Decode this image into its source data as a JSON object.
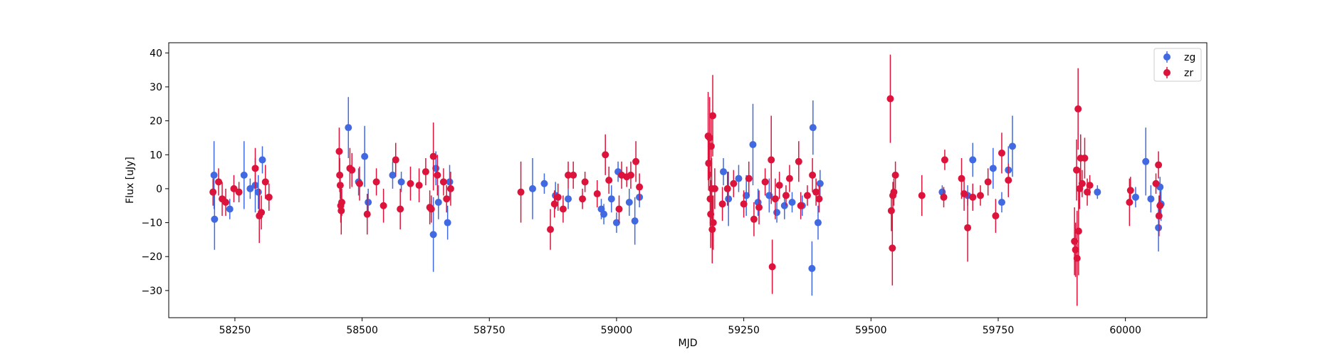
{
  "colors": {
    "zg": "#4169e1",
    "zr": "#dc143c",
    "axes": "#000000",
    "background": "#ffffff"
  },
  "chart_data": {
    "type": "scatter",
    "title": "",
    "xlabel": "MJD",
    "ylabel": "Flux [uJy]",
    "xlim": [
      58120,
      60160
    ],
    "ylim": [
      -38,
      43
    ],
    "x_ticks": [
      58250,
      58500,
      58750,
      59000,
      59250,
      59500,
      59750,
      60000
    ],
    "y_ticks": [
      -30,
      -20,
      -10,
      0,
      10,
      20,
      30,
      40
    ],
    "grid": false,
    "legend": {
      "placement": "top-right"
    },
    "error_bars": true,
    "series": [
      {
        "name": "zg",
        "color": "#4169e1",
        "points": [
          [
            58209,
            4,
            10
          ],
          [
            58210,
            -9,
            9
          ],
          [
            58240,
            -6,
            3
          ],
          [
            58268,
            4,
            10
          ],
          [
            58280,
            0,
            3
          ],
          [
            58290,
            1,
            8
          ],
          [
            58296,
            -1,
            5
          ],
          [
            58304,
            8.5,
            4
          ],
          [
            58473,
            18,
            9
          ],
          [
            58493,
            2,
            4
          ],
          [
            58505,
            9.5,
            9
          ],
          [
            58512,
            -4,
            4
          ],
          [
            58560,
            4,
            4
          ],
          [
            58577,
            2,
            3
          ],
          [
            58640,
            -13.5,
            11
          ],
          [
            58645,
            6,
            5
          ],
          [
            58650,
            -4,
            5
          ],
          [
            58668,
            -10,
            5
          ],
          [
            58672,
            2,
            5
          ],
          [
            58835,
            0,
            9
          ],
          [
            58858,
            1.5,
            3
          ],
          [
            58880,
            -2,
            4
          ],
          [
            58905,
            -3,
            3
          ],
          [
            58970,
            -6,
            3
          ],
          [
            58975,
            -7.5,
            3
          ],
          [
            58990,
            -3,
            4
          ],
          [
            59000,
            -10,
            3
          ],
          [
            59003,
            5,
            3
          ],
          [
            59025,
            -4,
            4
          ],
          [
            59036,
            -9.5,
            7
          ],
          [
            59045,
            -2.5,
            3
          ],
          [
            59210,
            5,
            4
          ],
          [
            59220,
            -3,
            8
          ],
          [
            59240,
            3,
            4
          ],
          [
            59268,
            13,
            12
          ],
          [
            59255,
            -2,
            6
          ],
          [
            59278,
            -4,
            4
          ],
          [
            59300,
            -2,
            5
          ],
          [
            59315,
            -7,
            3
          ],
          [
            59330,
            -5,
            4
          ],
          [
            59345,
            -4,
            3
          ],
          [
            59365,
            -5,
            3
          ],
          [
            59384,
            -23.5,
            8
          ],
          [
            59386,
            18,
            8
          ],
          [
            59396,
            -10,
            5
          ],
          [
            59400,
            1.5,
            4
          ],
          [
            59640,
            -1,
            2
          ],
          [
            59690,
            -2,
            3
          ],
          [
            59700,
            8.5,
            5
          ],
          [
            59740,
            6,
            6
          ],
          [
            59757,
            -4,
            3
          ],
          [
            59770,
            5.5,
            7
          ],
          [
            59778,
            12.5,
            9
          ],
          [
            59945,
            -1,
            2
          ],
          [
            60020,
            -2.5,
            3
          ],
          [
            60040,
            8,
            10
          ],
          [
            60050,
            -3,
            4
          ],
          [
            60065,
            -11.5,
            7
          ],
          [
            60068,
            0.5,
            3
          ],
          [
            60070,
            -4.5,
            5
          ]
        ]
      },
      {
        "name": "zr",
        "color": "#dc143c",
        "points": [
          [
            58207,
            -1,
            4
          ],
          [
            58218,
            2,
            4
          ],
          [
            58225,
            -3,
            5
          ],
          [
            58232,
            -4,
            4
          ],
          [
            58248,
            0,
            4
          ],
          [
            58258,
            -1,
            3
          ],
          [
            58290,
            6,
            6
          ],
          [
            58298,
            -8,
            8
          ],
          [
            58302,
            -7,
            5
          ],
          [
            58310,
            2,
            5
          ],
          [
            58317,
            -2.5,
            4
          ],
          [
            58455,
            11,
            7
          ],
          [
            58456,
            4,
            5
          ],
          [
            58457,
            1,
            4
          ],
          [
            58458,
            -5,
            5
          ],
          [
            58459,
            -6.5,
            7
          ],
          [
            58460,
            -4,
            4
          ],
          [
            58476,
            6,
            6
          ],
          [
            58480,
            5.5,
            5
          ],
          [
            58495,
            1.5,
            5
          ],
          [
            58510,
            -7.5,
            6
          ],
          [
            58528,
            2,
            4
          ],
          [
            58542,
            -5,
            5
          ],
          [
            58566,
            8.5,
            5
          ],
          [
            58575,
            -6,
            6
          ],
          [
            58595,
            1.5,
            5
          ],
          [
            58612,
            1,
            5
          ],
          [
            58625,
            5,
            4
          ],
          [
            58633,
            -5.5,
            5
          ],
          [
            58636,
            -6,
            4
          ],
          [
            58640,
            9.5,
            10
          ],
          [
            58648,
            4,
            6
          ],
          [
            58660,
            2,
            4
          ],
          [
            58666,
            -3,
            4
          ],
          [
            58674,
            0,
            5
          ],
          [
            58812,
            -1,
            9
          ],
          [
            58870,
            -12,
            6
          ],
          [
            58878,
            -4.5,
            4
          ],
          [
            58885,
            -2.5,
            4
          ],
          [
            58895,
            -6,
            4
          ],
          [
            58905,
            4,
            4
          ],
          [
            58915,
            4,
            4
          ],
          [
            58933,
            -3,
            3
          ],
          [
            58938,
            2,
            3
          ],
          [
            58962,
            -1.5,
            4
          ],
          [
            58978,
            10,
            6
          ],
          [
            58985,
            2.5,
            4
          ],
          [
            59005,
            -6,
            4
          ],
          [
            59010,
            4,
            4
          ],
          [
            59020,
            3.5,
            3
          ],
          [
            59028,
            4,
            4
          ],
          [
            59038,
            8,
            6
          ],
          [
            59045,
            0.5,
            4
          ],
          [
            59180,
            15.5,
            13
          ],
          [
            59181,
            7.5,
            8
          ],
          [
            59183,
            15,
            12
          ],
          [
            59184,
            -3,
            8
          ],
          [
            59185,
            -7.5,
            10
          ],
          [
            59186,
            12.5,
            9
          ],
          [
            59187,
            0,
            9
          ],
          [
            59188,
            -12,
            10
          ],
          [
            59189,
            21.5,
            12
          ],
          [
            59190,
            -10,
            8
          ],
          [
            59193,
            0,
            6
          ],
          [
            59208,
            -4.5,
            5
          ],
          [
            59218,
            0,
            5
          ],
          [
            59230,
            1.5,
            4
          ],
          [
            59250,
            -4.5,
            4
          ],
          [
            59260,
            3,
            5
          ],
          [
            59270,
            -9,
            5
          ],
          [
            59280,
            -5.5,
            5
          ],
          [
            59292,
            2,
            4
          ],
          [
            59304,
            8.5,
            13
          ],
          [
            59306,
            -23,
            8
          ],
          [
            59312,
            -3,
            6
          ],
          [
            59320,
            1,
            4
          ],
          [
            59333,
            -2,
            3
          ],
          [
            59340,
            3,
            4
          ],
          [
            59358,
            8,
            6
          ],
          [
            59362,
            -5,
            4
          ],
          [
            59375,
            -2,
            3
          ],
          [
            59385,
            4,
            5
          ],
          [
            59392,
            -1,
            4
          ],
          [
            59398,
            -3,
            4
          ],
          [
            59538,
            26.5,
            13
          ],
          [
            59540,
            -6.5,
            6
          ],
          [
            59542,
            -17.5,
            11
          ],
          [
            59543,
            -2,
            4
          ],
          [
            59545,
            -1,
            4
          ],
          [
            59548,
            4,
            4
          ],
          [
            59600,
            -2,
            6
          ],
          [
            59643,
            -2.5,
            3
          ],
          [
            59645,
            8.5,
            3
          ],
          [
            59678,
            3,
            6
          ],
          [
            59683,
            -1.5,
            5
          ],
          [
            59690,
            -11.5,
            10
          ],
          [
            59700,
            -2.5,
            4
          ],
          [
            59715,
            -2,
            3
          ],
          [
            59730,
            2,
            4
          ],
          [
            59745,
            -8,
            5
          ],
          [
            59757,
            10.5,
            6
          ],
          [
            59770,
            2.5,
            5
          ],
          [
            59900,
            -15.5,
            10
          ],
          [
            59902,
            -18,
            8
          ],
          [
            59904,
            5.5,
            9
          ],
          [
            59905,
            -20.5,
            14
          ],
          [
            59907,
            23.5,
            12
          ],
          [
            59908,
            -12.5,
            13
          ],
          [
            59910,
            0,
            6
          ],
          [
            59912,
            9,
            7
          ],
          [
            59915,
            1.5,
            4
          ],
          [
            59920,
            9,
            6
          ],
          [
            59925,
            -1,
            4
          ],
          [
            59930,
            1,
            3
          ],
          [
            60008,
            -4,
            7
          ],
          [
            60010,
            -0.5,
            4
          ],
          [
            60060,
            1.5,
            3
          ],
          [
            60065,
            7,
            4
          ],
          [
            60066,
            -8,
            6
          ],
          [
            60068,
            -5,
            4
          ]
        ]
      }
    ]
  }
}
